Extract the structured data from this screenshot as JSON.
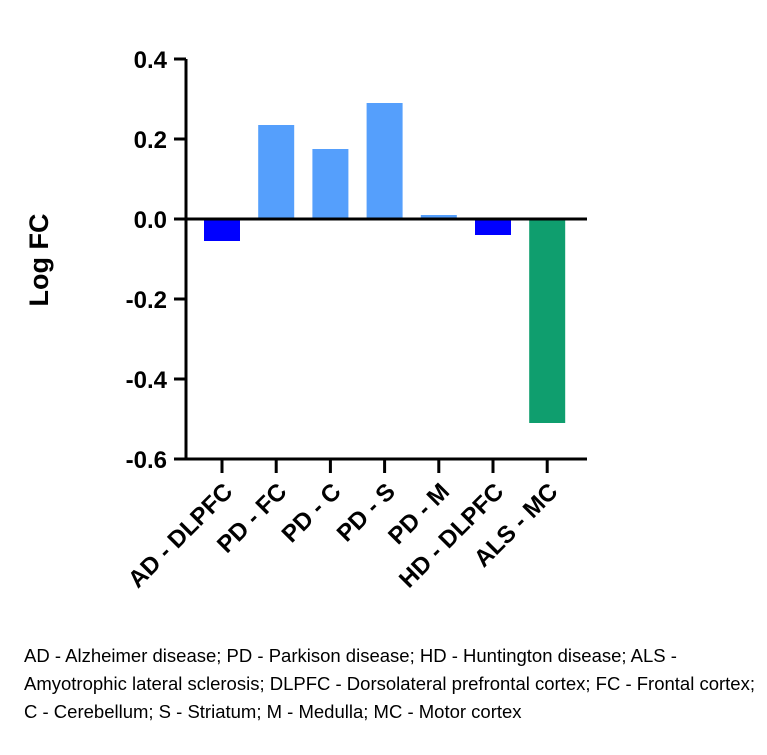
{
  "chart_data": {
    "type": "bar",
    "ylabel": "Log FC",
    "xlabel": "",
    "ylim": [
      -0.6,
      0.4
    ],
    "yticks": [
      0.4,
      0.2,
      0.0,
      -0.2,
      -0.4,
      -0.6
    ],
    "ytick_labels": [
      "0.4",
      "0.2",
      "0.0",
      "-0.2",
      "-0.4",
      "-0.6"
    ],
    "categories": [
      "AD - DLPFC",
      "PD - FC",
      "PD - C",
      "PD - S",
      "PD - M",
      "HD - DLPFC",
      "ALS - MC"
    ],
    "values": [
      -0.055,
      0.235,
      0.175,
      0.29,
      0.01,
      -0.04,
      -0.51
    ],
    "colors": [
      "#0000ff",
      "#559ffc",
      "#559ffc",
      "#559ffc",
      "#559ffc",
      "#0000ff",
      "#0f9e6e"
    ]
  },
  "caption": "AD - Alzheimer disease; PD - Parkison disease; HD - Huntington disease; ALS - Amyotrophic lateral sclerosis; DLPFC - Dorsolateral prefrontal cortex; FC - Frontal cortex; C - Cerebellum; S - Striatum; M - Medulla; MC - Motor cortex"
}
